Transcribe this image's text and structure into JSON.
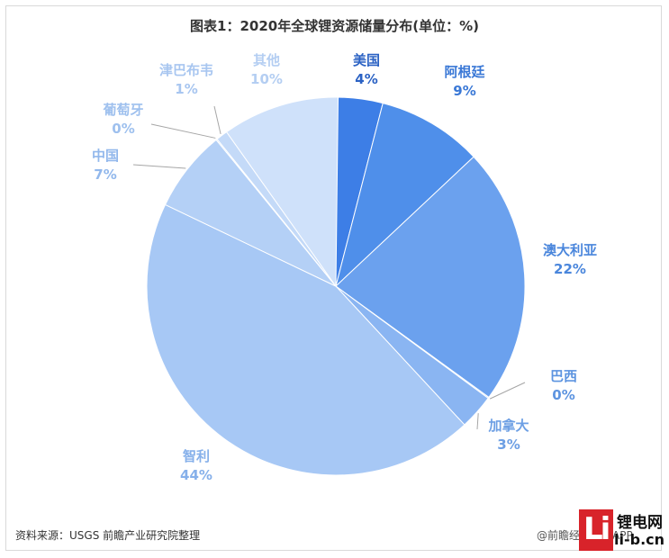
{
  "chart_data": {
    "type": "pie",
    "title": "图表1：2020年全球锂资源储量分布(单位：%)",
    "unit": "%",
    "slices": [
      {
        "name": "美国",
        "label": "4%",
        "value": 4,
        "color": "#3d7ee6",
        "text_color": "#2b62c4"
      },
      {
        "name": "阿根廷",
        "label": "9%",
        "value": 9,
        "color": "#4f8fea",
        "text_color": "#3a78d6"
      },
      {
        "name": "澳大利亚",
        "label": "22%",
        "value": 22,
        "color": "#6ba1ee",
        "text_color": "#4a86dc"
      },
      {
        "name": "巴西",
        "label": "0%",
        "value": 0,
        "color": "#7aaaf0",
        "text_color": "#5d94e0"
      },
      {
        "name": "加拿大",
        "label": "3%",
        "value": 3,
        "color": "#8ab5f2",
        "text_color": "#6d9fe4"
      },
      {
        "name": "智利",
        "label": "44%",
        "value": 44,
        "color": "#a7c8f5",
        "text_color": "#86b0ea"
      },
      {
        "name": "中国",
        "label": "7%",
        "value": 7,
        "color": "#b4d0f6",
        "text_color": "#92b8ec"
      },
      {
        "name": "葡萄牙",
        "label": "0%",
        "value": 0,
        "color": "#bcd5f7",
        "text_color": "#9ec0ee"
      },
      {
        "name": "津巴布韦",
        "label": "1%",
        "value": 1,
        "color": "#c4daf8",
        "text_color": "#a8c6f0"
      },
      {
        "name": "其他",
        "label": "10%",
        "value": 10,
        "color": "#cfe1fa",
        "text_color": "#b4cef2"
      }
    ]
  },
  "footer": {
    "source": "资料来源：USGS 前瞻产业研究院整理",
    "credit": "@前瞻经济学人APP"
  },
  "watermark": {
    "logo_glyph": "Li",
    "site_cn": "锂电网",
    "site_en": "li-b.cn"
  }
}
